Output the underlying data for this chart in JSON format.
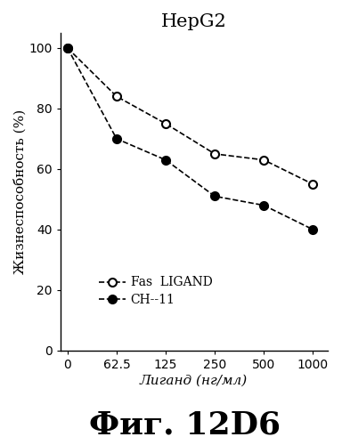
{
  "title": "HepG2",
  "xlabel": "Лиганд (нг/мл)",
  "ylabel": "Жизнеспособность (%)",
  "caption": "Фиг. 12D6",
  "x_indices": [
    0,
    1,
    2,
    3,
    4,
    5
  ],
  "xtick_labels": [
    "0",
    "62.5",
    "125",
    "250",
    "500",
    "1000"
  ],
  "fas_ligand_y": [
    100,
    84,
    75,
    65,
    63,
    55
  ],
  "ch11_y": [
    100,
    70,
    63,
    51,
    48,
    40
  ],
  "fas_label": "Fas  LIGAND",
  "ch11_label": "CH--11",
  "ylim": [
    0,
    105
  ],
  "yticks": [
    0,
    20,
    40,
    60,
    80,
    100
  ],
  "xlim": [
    -0.15,
    5.3
  ],
  "line_color": "#000000",
  "background_color": "#ffffff",
  "title_fontsize": 15,
  "axis_label_fontsize": 11,
  "tick_fontsize": 10,
  "legend_fontsize": 10,
  "caption_fontsize": 26
}
